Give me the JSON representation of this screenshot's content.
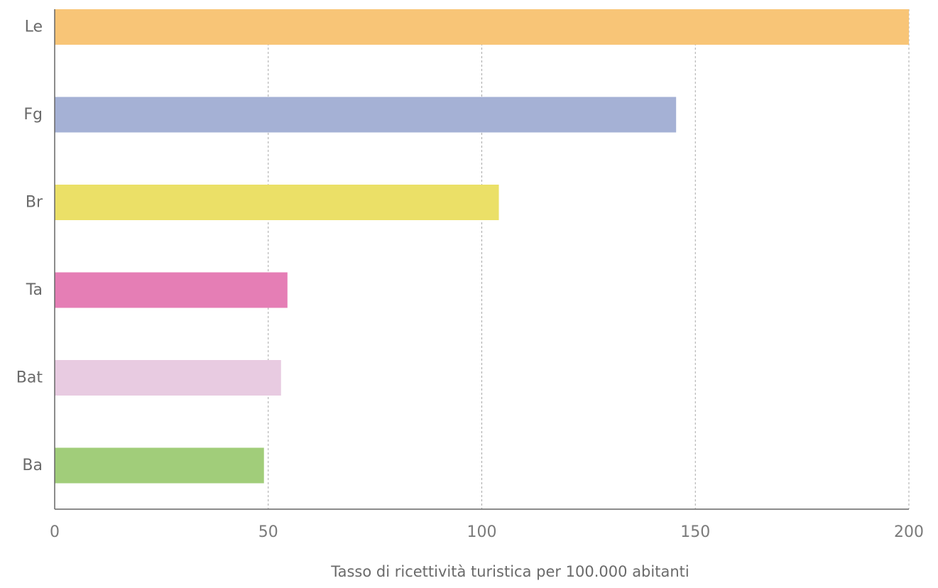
{
  "chart_data": {
    "type": "bar",
    "orientation": "horizontal",
    "categories": [
      "Le",
      "Fg",
      "Br",
      "Ta",
      "Bat",
      "Ba"
    ],
    "values": [
      200,
      145.5,
      104,
      54.5,
      53,
      49
    ],
    "colors": [
      "#f8c577",
      "#a5b1d5",
      "#ebe067",
      "#e57eb5",
      "#e8cbe1",
      "#a1cd7a"
    ],
    "title": "",
    "xlabel": "Tasso di ricettività turistica per 100.000 abitanti",
    "ylabel": "",
    "xlim": [
      0,
      200
    ],
    "xticks": [
      0,
      50,
      100,
      150,
      200
    ],
    "grid": "vertical-dashed",
    "legend": "none"
  }
}
